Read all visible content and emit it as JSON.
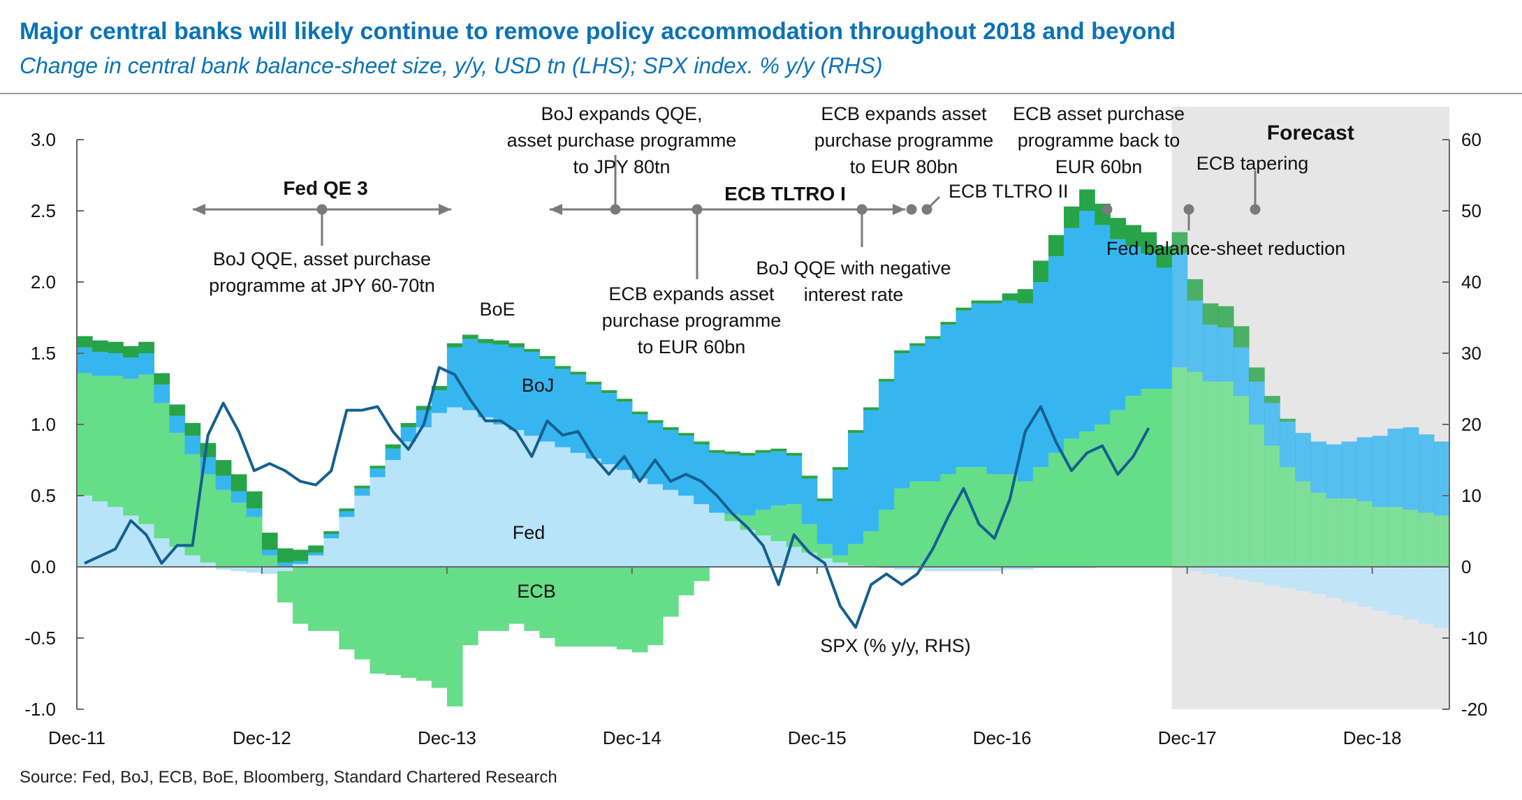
{
  "header": {
    "title": "Major central banks will likely continue to remove policy accommodation throughout 2018 and beyond",
    "subtitle": "Change in central bank balance-sheet size, y/y, USD tn (LHS); SPX index. % y/y (RHS)"
  },
  "footer": {
    "source": "Source: Fed, BoJ, ECB, BoE, Bloomberg, Standard Chartered Research"
  },
  "chart_data": {
    "type": "area",
    "stacked": true,
    "x_ticks": [
      "Dec-11",
      "Dec-12",
      "Dec-13",
      "Dec-14",
      "Dec-15",
      "Dec-16",
      "Dec-17",
      "Dec-18"
    ],
    "x_tick_index": [
      0,
      12,
      24,
      36,
      48,
      60,
      72,
      84
    ],
    "y_left": {
      "min": -1.0,
      "max": 3.0,
      "ticks": [
        "3.0",
        "2.5",
        "2.0",
        "1.5",
        "1.0",
        "0.5",
        "0.0",
        "-0.5",
        "-1.0"
      ]
    },
    "y_right": {
      "min": -20,
      "max": 60,
      "ticks": [
        "60",
        "50",
        "40",
        "30",
        "20",
        "10",
        "0",
        "-10",
        "-20"
      ]
    },
    "grid": false,
    "forecast": {
      "label": "Forecast",
      "start_index": 71
    },
    "colors": {
      "Fed": "#b8e4fa",
      "ECB": "#66dd88",
      "BoJ": "#36b6f0",
      "BoE": "#27a348",
      "SPX": "#145f8f",
      "forecast_shade": "#e6e6e6",
      "annotation": "#7a7a7a"
    },
    "series_labels": {
      "Fed": "Fed",
      "ECB": "ECB",
      "BoJ": "BoJ",
      "BoE": "BoE",
      "SPX": "SPX (% y/y, RHS)"
    },
    "series": {
      "Fed": [
        0.5,
        0.46,
        0.42,
        0.36,
        0.3,
        0.2,
        0.14,
        0.08,
        0.03,
        -0.02,
        -0.03,
        -0.04,
        -0.05,
        -0.03,
        0.02,
        0.08,
        0.2,
        0.35,
        0.5,
        0.63,
        0.75,
        0.88,
        0.98,
        1.08,
        1.12,
        1.1,
        1.05,
        1.0,
        0.96,
        0.92,
        0.88,
        0.84,
        0.8,
        0.76,
        0.72,
        0.68,
        0.62,
        0.58,
        0.54,
        0.5,
        0.44,
        0.38,
        0.32,
        0.26,
        0.22,
        0.18,
        0.14,
        0.1,
        0.06,
        0.03,
        0.01,
        0.0,
        -0.01,
        -0.02,
        -0.02,
        -0.03,
        -0.03,
        -0.03,
        -0.03,
        -0.03,
        -0.02,
        -0.02,
        -0.01,
        -0.01,
        -0.01,
        -0.01,
        0.0,
        0.0,
        0.0,
        0.0,
        0.0,
        -0.01,
        -0.03,
        -0.05,
        -0.07,
        -0.09,
        -0.11,
        -0.13,
        -0.15,
        -0.17,
        -0.19,
        -0.22,
        -0.25,
        -0.28,
        -0.31,
        -0.34,
        -0.37,
        -0.4,
        -0.43
      ],
      "ECB": [
        0.86,
        0.88,
        0.92,
        0.96,
        1.05,
        0.95,
        0.8,
        0.71,
        0.62,
        0.54,
        0.45,
        0.35,
        0.08,
        -0.22,
        -0.4,
        -0.45,
        -0.45,
        -0.58,
        -0.65,
        -0.75,
        -0.76,
        -0.78,
        -0.8,
        -0.85,
        -0.98,
        -0.55,
        -0.45,
        -0.45,
        -0.4,
        -0.45,
        -0.5,
        -0.56,
        -0.56,
        -0.56,
        -0.56,
        -0.58,
        -0.6,
        -0.55,
        -0.35,
        -0.2,
        -0.1,
        0.0,
        0.05,
        0.1,
        0.18,
        0.25,
        0.3,
        0.2,
        0.1,
        0.05,
        0.15,
        0.25,
        0.4,
        0.55,
        0.6,
        0.6,
        0.65,
        0.7,
        0.7,
        0.65,
        0.65,
        0.6,
        0.7,
        0.8,
        0.9,
        0.95,
        1.0,
        1.1,
        1.2,
        1.25,
        1.25,
        1.4,
        1.37,
        1.3,
        1.3,
        1.2,
        1.0,
        0.85,
        0.7,
        0.6,
        0.52,
        0.48,
        0.48,
        0.46,
        0.42,
        0.42,
        0.4,
        0.38,
        0.36
      ],
      "BoJ": [
        0.18,
        0.17,
        0.16,
        0.15,
        0.15,
        0.13,
        0.12,
        0.13,
        0.12,
        0.1,
        0.08,
        0.06,
        0.04,
        0.03,
        0.02,
        0.02,
        0.03,
        0.04,
        0.05,
        0.06,
        0.08,
        0.1,
        0.12,
        0.16,
        0.42,
        0.5,
        0.52,
        0.56,
        0.58,
        0.59,
        0.58,
        0.55,
        0.55,
        0.52,
        0.5,
        0.48,
        0.45,
        0.43,
        0.42,
        0.42,
        0.42,
        0.42,
        0.42,
        0.42,
        0.4,
        0.38,
        0.34,
        0.32,
        0.3,
        0.6,
        0.78,
        0.85,
        0.9,
        0.95,
        0.95,
        1.0,
        1.05,
        1.1,
        1.15,
        1.2,
        1.22,
        1.25,
        1.3,
        1.38,
        1.48,
        1.55,
        1.4,
        1.2,
        1.05,
        0.95,
        0.85,
        0.8,
        0.5,
        0.4,
        0.38,
        0.34,
        0.3,
        0.3,
        0.32,
        0.34,
        0.36,
        0.38,
        0.4,
        0.45,
        0.5,
        0.55,
        0.58,
        0.55,
        0.52
      ],
      "BoE": [
        0.08,
        0.08,
        0.08,
        0.08,
        0.08,
        0.08,
        0.08,
        0.09,
        0.1,
        0.11,
        0.12,
        0.12,
        0.12,
        0.1,
        0.08,
        0.05,
        0.02,
        0.02,
        0.02,
        0.02,
        0.03,
        0.03,
        0.03,
        0.03,
        0.03,
        0.03,
        0.03,
        0.03,
        0.03,
        0.02,
        0.02,
        0.02,
        0.02,
        0.02,
        0.02,
        0.02,
        0.02,
        0.02,
        0.02,
        0.02,
        0.02,
        0.02,
        0.02,
        0.02,
        0.02,
        0.02,
        0.02,
        0.02,
        0.02,
        0.02,
        0.02,
        0.02,
        0.02,
        0.02,
        0.02,
        0.02,
        0.02,
        0.02,
        0.02,
        0.02,
        0.05,
        0.1,
        0.15,
        0.15,
        0.15,
        0.15,
        0.15,
        0.15,
        0.15,
        0.15,
        0.15,
        0.15,
        0.15,
        0.15,
        0.15,
        0.15,
        0.1,
        0.05,
        0.02,
        0.0,
        0.0,
        0.0,
        0.0,
        0.0,
        0.0,
        0.0,
        0.0,
        0.0,
        0.0
      ],
      "SPX": [
        0.5,
        1.5,
        2.5,
        6.5,
        4.5,
        0.5,
        3.0,
        3.0,
        18.5,
        23.0,
        19.0,
        13.5,
        14.5,
        13.5,
        12.0,
        11.5,
        13.5,
        22.0,
        22.0,
        22.5,
        19.0,
        16.5,
        20.0,
        28.0,
        27.0,
        23.5,
        20.5,
        20.5,
        19.0,
        15.5,
        20.5,
        18.5,
        19.0,
        15.5,
        13.0,
        15.5,
        12.0,
        15.0,
        12.0,
        13.0,
        12.0,
        10.0,
        7.5,
        5.5,
        3.0,
        -2.5,
        4.5,
        2.0,
        0.5,
        -5.5,
        -8.5,
        -2.5,
        -1.0,
        -2.5,
        -1.0,
        2.5,
        7.0,
        11.0,
        6.0,
        4.0,
        9.5,
        19.0,
        22.5,
        17.5,
        13.5,
        16.0,
        17.0,
        13.0,
        15.5,
        19.5
      ]
    },
    "annotations": [
      {
        "text": "Fed QE 3",
        "bold": true
      },
      {
        "text": "BoJ QQE, asset purchase",
        "line2": "programme at JPY 60-70tn"
      },
      {
        "text": "BoJ expands QQE,",
        "line2": "asset purchase programme",
        "line3": "to JPY 80tn"
      },
      {
        "text": "ECB TLTRO I",
        "bold": true
      },
      {
        "text": "ECB expands asset",
        "line2": "purchase programme",
        "line3": "to EUR 60bn"
      },
      {
        "text": "BoJ QQE with negative",
        "line2": "interest rate"
      },
      {
        "text": "ECB expands asset",
        "line2": "purchase programme",
        "line3": "to EUR 80bn"
      },
      {
        "text": "ECB TLTRO II"
      },
      {
        "text": "ECB asset purchase",
        "line2": "programme back to",
        "line3": "EUR 60bn"
      },
      {
        "text": "ECB tapering"
      },
      {
        "text": "Fed balance-sheet reduction"
      }
    ]
  }
}
